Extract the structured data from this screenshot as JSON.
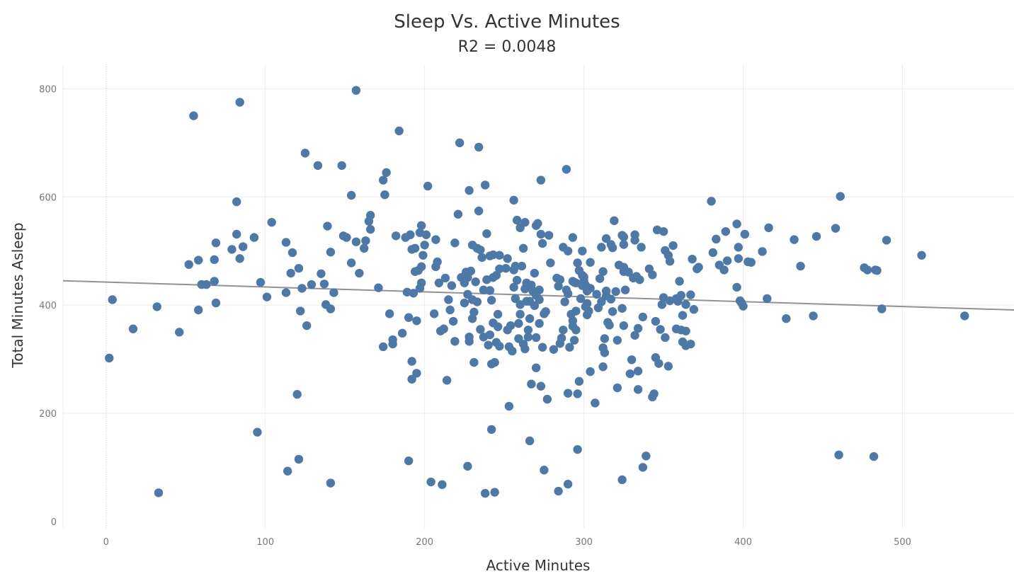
{
  "chart_data": {
    "type": "scatter",
    "title": "Sleep Vs. Active Minutes",
    "subtitle": "R2 = 0.0048",
    "xlabel": "Active Minutes",
    "ylabel": "Total Minutes Asleep",
    "xlim": [
      -27,
      570
    ],
    "ylim": [
      -12,
      845
    ],
    "x_ticks": [
      0,
      100,
      200,
      300,
      400,
      500
    ],
    "y_ticks": [
      0,
      200,
      400,
      600,
      800
    ],
    "grid": true,
    "point_color": "#4e79a7",
    "trend_color": "#929292",
    "trend_line": {
      "x": [
        -27,
        570
      ],
      "y": [
        445,
        391
      ]
    },
    "points": [
      [
        2,
        302
      ],
      [
        4,
        410
      ],
      [
        17,
        356
      ],
      [
        32,
        397
      ],
      [
        33,
        53
      ],
      [
        46,
        350
      ],
      [
        52,
        475
      ],
      [
        55,
        750
      ],
      [
        58,
        483
      ],
      [
        58,
        391
      ],
      [
        60,
        438
      ],
      [
        63,
        438
      ],
      [
        68,
        484
      ],
      [
        68,
        444
      ],
      [
        69,
        404
      ],
      [
        69,
        515
      ],
      [
        79,
        503
      ],
      [
        82,
        591
      ],
      [
        82,
        531
      ],
      [
        84,
        775
      ],
      [
        84,
        486
      ],
      [
        86,
        508
      ],
      [
        93,
        525
      ],
      [
        95,
        165
      ],
      [
        97,
        442
      ],
      [
        101,
        415
      ],
      [
        104,
        553
      ],
      [
        113,
        423
      ],
      [
        113,
        516
      ],
      [
        114,
        93
      ],
      [
        116,
        459
      ],
      [
        117,
        497
      ],
      [
        120,
        235
      ],
      [
        121,
        115
      ],
      [
        121,
        468
      ],
      [
        122,
        389
      ],
      [
        123,
        431
      ],
      [
        125,
        681
      ],
      [
        126,
        362
      ],
      [
        129,
        438
      ],
      [
        133,
        658
      ],
      [
        135,
        458
      ],
      [
        137,
        439
      ],
      [
        138,
        401
      ],
      [
        139,
        546
      ],
      [
        141,
        393
      ],
      [
        141,
        71
      ],
      [
        141,
        498
      ],
      [
        143,
        423
      ],
      [
        148,
        658
      ],
      [
        149,
        528
      ],
      [
        151,
        525
      ],
      [
        154,
        603
      ],
      [
        154,
        478
      ],
      [
        157,
        797
      ],
      [
        157,
        517
      ],
      [
        159,
        459
      ],
      [
        162,
        505
      ],
      [
        163,
        519
      ],
      [
        165,
        555
      ],
      [
        166,
        540
      ],
      [
        166,
        566
      ],
      [
        171,
        432
      ],
      [
        174,
        631
      ],
      [
        174,
        323
      ],
      [
        175,
        604
      ],
      [
        176,
        645
      ],
      [
        178,
        384
      ],
      [
        180,
        328
      ],
      [
        180,
        336
      ],
      [
        182,
        528
      ],
      [
        184,
        722
      ],
      [
        186,
        348
      ],
      [
        188,
        525
      ],
      [
        189,
        424
      ],
      [
        190,
        112
      ],
      [
        190,
        377
      ],
      [
        191,
        530
      ],
      [
        192,
        503
      ],
      [
        192,
        263
      ],
      [
        192,
        296
      ],
      [
        193,
        422
      ],
      [
        194,
        462
      ],
      [
        194,
        505
      ],
      [
        195,
        371
      ],
      [
        195,
        274
      ],
      [
        196,
        464
      ],
      [
        197,
        534
      ],
      [
        197,
        431
      ],
      [
        198,
        547
      ],
      [
        198,
        441
      ],
      [
        198,
        471
      ],
      [
        199,
        492
      ],
      [
        200,
        511
      ],
      [
        201,
        530
      ],
      [
        202,
        620
      ],
      [
        204,
        73
      ],
      [
        206,
        384
      ],
      [
        207,
        521
      ],
      [
        207,
        471
      ],
      [
        208,
        480
      ],
      [
        209,
        441
      ],
      [
        210,
        352
      ],
      [
        211,
        68
      ],
      [
        212,
        356
      ],
      [
        213,
        450
      ],
      [
        214,
        261
      ],
      [
        215,
        410
      ],
      [
        216,
        391
      ],
      [
        217,
        436
      ],
      [
        218,
        370
      ],
      [
        219,
        515
      ],
      [
        219,
        333
      ],
      [
        221,
        568
      ],
      [
        222,
        700
      ],
      [
        223,
        451
      ],
      [
        225,
        404
      ],
      [
        225,
        441
      ],
      [
        226,
        461
      ],
      [
        227,
        102
      ],
      [
        227,
        420
      ],
      [
        227,
        451
      ],
      [
        228,
        341
      ],
      [
        228,
        333
      ],
      [
        228,
        612
      ],
      [
        229,
        463
      ],
      [
        230,
        375
      ],
      [
        230,
        410
      ],
      [
        230,
        511
      ],
      [
        231,
        294
      ],
      [
        231,
        387
      ],
      [
        232,
        443
      ],
      [
        233,
        505
      ],
      [
        233,
        406
      ],
      [
        234,
        692
      ],
      [
        234,
        574
      ],
      [
        235,
        355
      ],
      [
        235,
        502
      ],
      [
        236,
        488
      ],
      [
        237,
        341
      ],
      [
        237,
        428
      ],
      [
        238,
        52
      ],
      [
        238,
        622
      ],
      [
        239,
        532
      ],
      [
        239,
        447
      ],
      [
        240,
        326
      ],
      [
        241,
        491
      ],
      [
        241,
        427
      ],
      [
        241,
        345
      ],
      [
        242,
        170
      ],
      [
        242,
        291
      ],
      [
        242,
        409
      ],
      [
        243,
        493
      ],
      [
        243,
        367
      ],
      [
        243,
        451
      ],
      [
        244,
        294
      ],
      [
        244,
        54
      ],
      [
        245,
        455
      ],
      [
        245,
        331
      ],
      [
        246,
        383
      ],
      [
        246,
        360
      ],
      [
        247,
        492
      ],
      [
        247,
        324
      ],
      [
        247,
        467
      ],
      [
        251,
        468
      ],
      [
        252,
        354
      ],
      [
        252,
        486
      ],
      [
        253,
        213
      ],
      [
        253,
        323
      ],
      [
        254,
        362
      ],
      [
        255,
        315
      ],
      [
        256,
        465
      ],
      [
        256,
        594
      ],
      [
        256,
        433
      ],
      [
        257,
        412
      ],
      [
        257,
        472
      ],
      [
        258,
        446
      ],
      [
        258,
        557
      ],
      [
        259,
        366
      ],
      [
        259,
        338
      ],
      [
        260,
        383
      ],
      [
        260,
        543
      ],
      [
        260,
        401
      ],
      [
        261,
        472
      ],
      [
        262,
        328
      ],
      [
        262,
        505
      ],
      [
        263,
        553
      ],
      [
        263,
        319
      ],
      [
        263,
        430
      ],
      [
        264,
        407
      ],
      [
        264,
        434
      ],
      [
        264,
        441
      ],
      [
        265,
        341
      ],
      [
        265,
        354
      ],
      [
        266,
        149
      ],
      [
        266,
        375
      ],
      [
        266,
        407
      ],
      [
        267,
        437
      ],
      [
        267,
        254
      ],
      [
        268,
        426
      ],
      [
        268,
        426
      ],
      [
        269,
        459
      ],
      [
        269,
        399
      ],
      [
        270,
        284
      ],
      [
        270,
        340
      ],
      [
        270,
        418
      ],
      [
        270,
        547
      ],
      [
        271,
        551
      ],
      [
        272,
        366
      ],
      [
        272,
        428
      ],
      [
        272,
        410
      ],
      [
        273,
        250
      ],
      [
        273,
        631
      ],
      [
        273,
        531
      ],
      [
        274,
        514
      ],
      [
        274,
        322
      ],
      [
        275,
        384
      ],
      [
        275,
        95
      ],
      [
        276,
        388
      ],
      [
        277,
        226
      ],
      [
        278,
        529
      ],
      [
        279,
        478
      ],
      [
        281,
        318
      ],
      [
        283,
        450
      ],
      [
        284,
        435
      ],
      [
        284,
        56
      ],
      [
        285,
        329
      ],
      [
        285,
        447
      ],
      [
        286,
        339
      ],
      [
        287,
        354
      ],
      [
        287,
        507
      ],
      [
        288,
        406
      ],
      [
        289,
        428
      ],
      [
        289,
        651
      ],
      [
        290,
        421
      ],
      [
        290,
        500
      ],
      [
        290,
        237
      ],
      [
        290,
        69
      ],
      [
        291,
        322
      ],
      [
        292,
        383
      ],
      [
        293,
        444
      ],
      [
        293,
        361
      ],
      [
        293,
        371
      ],
      [
        293,
        525
      ],
      [
        294,
        442
      ],
      [
        294,
        335
      ],
      [
        295,
        441
      ],
      [
        295,
        354
      ],
      [
        295,
        389
      ],
      [
        296,
        133
      ],
      [
        296,
        236
      ],
      [
        296,
        478
      ],
      [
        297,
        464
      ],
      [
        297,
        259
      ],
      [
        298,
        412
      ],
      [
        299,
        455
      ],
      [
        299,
        436
      ],
      [
        299,
        500
      ],
      [
        300,
        452
      ],
      [
        300,
        445
      ],
      [
        301,
        437
      ],
      [
        301,
        397
      ],
      [
        302,
        403
      ],
      [
        302,
        382
      ],
      [
        302,
        426
      ],
      [
        303,
        389
      ],
      [
        304,
        431
      ],
      [
        304,
        479
      ],
      [
        304,
        277
      ],
      [
        307,
        219
      ],
      [
        308,
        420
      ],
      [
        309,
        395
      ],
      [
        310,
        449
      ],
      [
        311,
        507
      ],
      [
        311,
        406
      ],
      [
        312,
        286
      ],
      [
        312,
        462
      ],
      [
        312,
        321
      ],
      [
        313,
        312
      ],
      [
        313,
        338
      ],
      [
        314,
        426
      ],
      [
        314,
        417
      ],
      [
        314,
        523
      ],
      [
        315,
        368
      ],
      [
        316,
        363
      ],
      [
        317,
        512
      ],
      [
        317,
        411
      ],
      [
        318,
        388
      ],
      [
        318,
        506
      ],
      [
        319,
        556
      ],
      [
        320,
        425
      ],
      [
        321,
        335
      ],
      [
        321,
        247
      ],
      [
        322,
        474
      ],
      [
        324,
        77
      ],
      [
        324,
        529
      ],
      [
        324,
        394
      ],
      [
        325,
        462
      ],
      [
        325,
        362
      ],
      [
        325,
        470
      ],
      [
        325,
        512
      ],
      [
        325,
        526
      ],
      [
        326,
        428
      ],
      [
        328,
        461
      ],
      [
        329,
        273
      ],
      [
        330,
        299
      ],
      [
        331,
        450
      ],
      [
        332,
        344
      ],
      [
        332,
        520
      ],
      [
        332,
        530
      ],
      [
        333,
        453
      ],
      [
        334,
        278
      ],
      [
        334,
        357
      ],
      [
        334,
        244
      ],
      [
        335,
        447
      ],
      [
        336,
        507
      ],
      [
        337,
        100
      ],
      [
        337,
        378
      ],
      [
        339,
        121
      ],
      [
        341,
        467
      ],
      [
        343,
        230
      ],
      [
        343,
        456
      ],
      [
        344,
        236
      ],
      [
        345,
        303
      ],
      [
        345,
        370
      ],
      [
        346,
        539
      ],
      [
        347,
        292
      ],
      [
        348,
        355
      ],
      [
        349,
        401
      ],
      [
        350,
        414
      ],
      [
        350,
        536
      ],
      [
        351,
        340
      ],
      [
        351,
        501
      ],
      [
        353,
        492
      ],
      [
        353,
        287
      ],
      [
        354,
        481
      ],
      [
        354,
        408
      ],
      [
        356,
        510
      ],
      [
        358,
        412
      ],
      [
        358,
        356
      ],
      [
        359,
        407
      ],
      [
        360,
        444
      ],
      [
        361,
        418
      ],
      [
        361,
        354
      ],
      [
        362,
        381
      ],
      [
        362,
        332
      ],
      [
        364,
        352
      ],
      [
        364,
        401
      ],
      [
        364,
        325
      ],
      [
        367,
        419
      ],
      [
        367,
        328
      ],
      [
        368,
        485
      ],
      [
        369,
        392
      ],
      [
        371,
        467
      ],
      [
        372,
        470
      ],
      [
        380,
        592
      ],
      [
        381,
        497
      ],
      [
        383,
        522
      ],
      [
        385,
        474
      ],
      [
        388,
        465
      ],
      [
        389,
        536
      ],
      [
        390,
        482
      ],
      [
        396,
        550
      ],
      [
        396,
        433
      ],
      [
        397,
        507
      ],
      [
        397,
        486
      ],
      [
        398,
        408
      ],
      [
        399,
        404
      ],
      [
        400,
        398
      ],
      [
        401,
        531
      ],
      [
        403,
        480
      ],
      [
        405,
        479
      ],
      [
        412,
        499
      ],
      [
        415,
        412
      ],
      [
        416,
        543
      ],
      [
        427,
        375
      ],
      [
        432,
        521
      ],
      [
        436,
        472
      ],
      [
        444,
        380
      ],
      [
        446,
        527
      ],
      [
        458,
        542
      ],
      [
        460,
        123
      ],
      [
        461,
        601
      ],
      [
        476,
        469
      ],
      [
        478,
        465
      ],
      [
        482,
        120
      ],
      [
        483,
        465
      ],
      [
        484,
        464
      ],
      [
        487,
        393
      ],
      [
        490,
        520
      ],
      [
        512,
        492
      ],
      [
        539,
        380
      ]
    ]
  }
}
